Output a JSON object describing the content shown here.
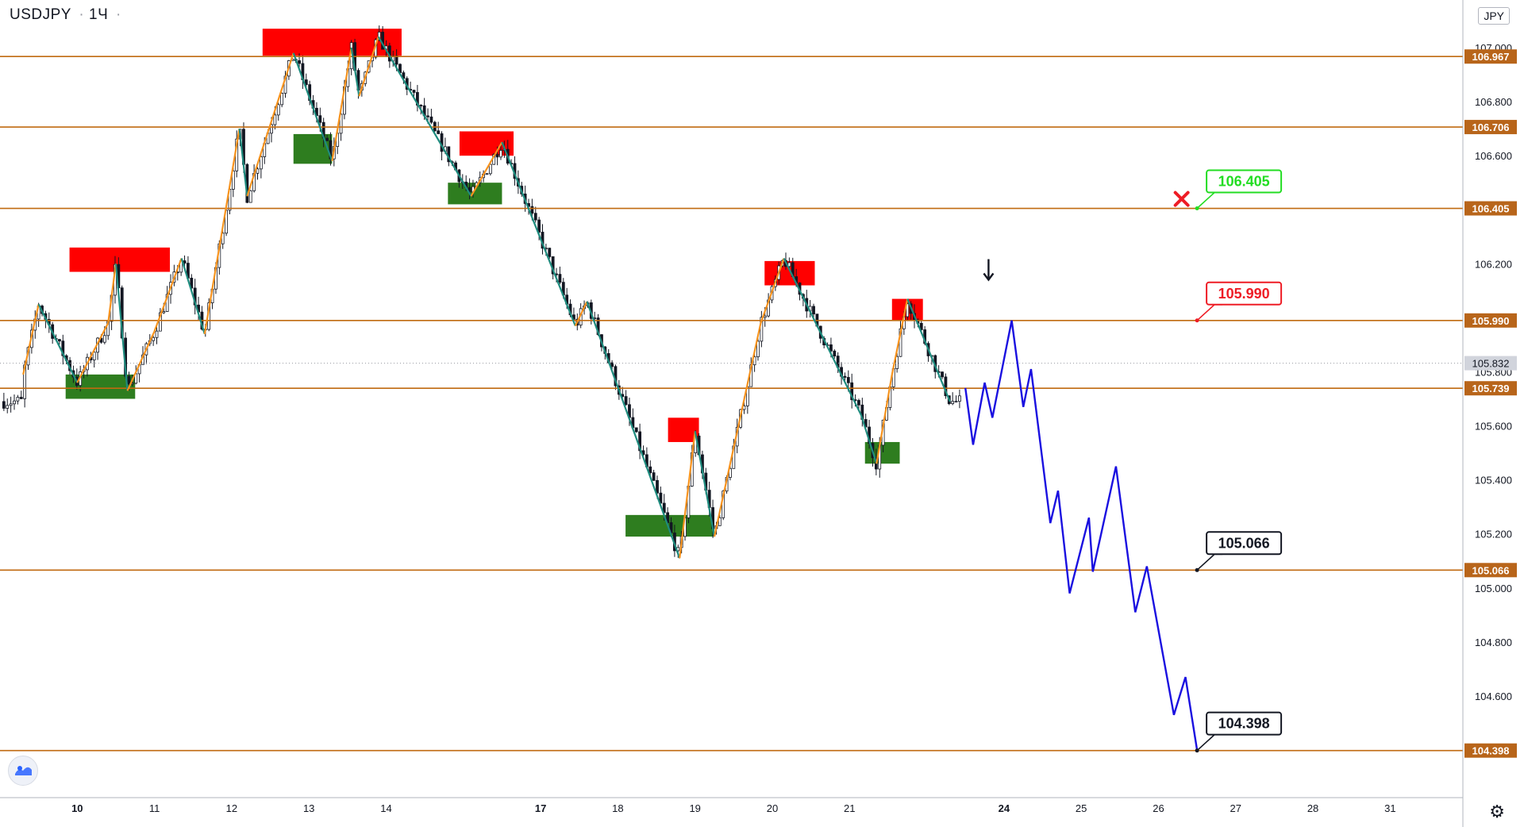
{
  "header": {
    "symbol": "USDJPY",
    "interval": "1Ч",
    "separator": "·",
    "currency": "JPY"
  },
  "colors": {
    "level_line": "#c06a10",
    "label_bg": "#b8651a",
    "supply": "#ff0000",
    "demand": "#2e7d1f",
    "zigzag_up": "#f7931e",
    "zigzag_down": "#1e8b7e",
    "forecast": "#1a10e0",
    "candle": "#131722",
    "target_green": "#22dd22",
    "target_red": "#ee1c25",
    "target_black": "#131722"
  },
  "icons": {
    "logo": "chart-logo-icon",
    "settings": "gear-icon",
    "cross": "x-mark-icon",
    "arrow": "arrow-down-icon"
  },
  "chart_data": {
    "type": "candlestick",
    "title": "USDJPY · 1Ч",
    "ylim": [
      104.25,
      107.05
    ],
    "y_ticks": [
      104.6,
      104.8,
      105.0,
      105.2,
      105.4,
      105.6,
      105.8,
      106.2,
      106.6,
      106.8,
      107.0
    ],
    "y_tick_labels": [
      "104.600",
      "104.800",
      "105.000",
      "105.200",
      "105.400",
      "105.600",
      "105.800",
      "106.200",
      "106.600",
      "106.800",
      "107.000"
    ],
    "x_labels": [
      {
        "t": 0.5,
        "label": "10",
        "bold": true
      },
      {
        "t": 1.5,
        "label": "11",
        "bold": false
      },
      {
        "t": 2.5,
        "label": "12",
        "bold": false
      },
      {
        "t": 3.5,
        "label": "13",
        "bold": false
      },
      {
        "t": 4.5,
        "label": "14",
        "bold": false
      },
      {
        "t": 6.5,
        "label": "17",
        "bold": true
      },
      {
        "t": 7.5,
        "label": "18",
        "bold": false
      },
      {
        "t": 8.5,
        "label": "19",
        "bold": false
      },
      {
        "t": 9.5,
        "label": "20",
        "bold": false
      },
      {
        "t": 10.5,
        "label": "21",
        "bold": false
      },
      {
        "t": 12.5,
        "label": "24",
        "bold": true
      },
      {
        "t": 13.5,
        "label": "25",
        "bold": false
      },
      {
        "t": 14.5,
        "label": "26",
        "bold": false
      },
      {
        "t": 15.5,
        "label": "27",
        "bold": false
      },
      {
        "t": 16.5,
        "label": "28",
        "bold": false
      },
      {
        "t": 17.5,
        "label": "31",
        "bold": false
      }
    ],
    "levels": [
      {
        "price": 106.967,
        "label": "106.967"
      },
      {
        "price": 106.706,
        "label": "106.706"
      },
      {
        "price": 106.405,
        "label": "106.405"
      },
      {
        "price": 105.99,
        "label": "105.990"
      },
      {
        "price": 105.739,
        "label": "105.739"
      },
      {
        "price": 105.066,
        "label": "105.066"
      },
      {
        "price": 104.398,
        "label": "104.398"
      }
    ],
    "last_price": {
      "price": 105.832,
      "label": "105.832"
    },
    "supply_zones": [
      {
        "t0": 0.4,
        "t1": 1.7,
        "p_low": 106.17,
        "p_high": 106.26
      },
      {
        "t0": 2.9,
        "t1": 4.7,
        "p_low": 106.97,
        "p_high": 107.07
      },
      {
        "t0": 5.45,
        "t1": 6.15,
        "p_low": 106.6,
        "p_high": 106.69
      },
      {
        "t0": 8.15,
        "t1": 8.55,
        "p_low": 105.54,
        "p_high": 105.63
      },
      {
        "t0": 9.4,
        "t1": 10.05,
        "p_low": 106.12,
        "p_high": 106.21
      },
      {
        "t0": 11.05,
        "t1": 11.45,
        "p_low": 105.99,
        "p_high": 106.07
      }
    ],
    "demand_zones": [
      {
        "t0": 0.35,
        "t1": 1.25,
        "p_low": 105.7,
        "p_high": 105.79
      },
      {
        "t0": 3.3,
        "t1": 3.8,
        "p_low": 106.57,
        "p_high": 106.68
      },
      {
        "t0": 5.3,
        "t1": 6.0,
        "p_low": 106.42,
        "p_high": 106.5
      },
      {
        "t0": 7.6,
        "t1": 8.75,
        "p_low": 105.19,
        "p_high": 105.27
      },
      {
        "t0": 10.7,
        "t1": 11.15,
        "p_low": 105.46,
        "p_high": 105.54
      }
    ],
    "zigzag": [
      {
        "t": -0.2,
        "p": 105.79
      },
      {
        "t": 0.0,
        "p": 106.05
      },
      {
        "t": 0.5,
        "p": 105.76
      },
      {
        "t": 0.9,
        "p": 105.98
      },
      {
        "t": 1.0,
        "p": 106.2
      },
      {
        "t": 1.15,
        "p": 105.73
      },
      {
        "t": 1.5,
        "p": 105.95
      },
      {
        "t": 1.85,
        "p": 106.22
      },
      {
        "t": 2.15,
        "p": 105.94
      },
      {
        "t": 2.6,
        "p": 106.7
      },
      {
        "t": 2.7,
        "p": 106.45
      },
      {
        "t": 3.3,
        "p": 106.98
      },
      {
        "t": 3.8,
        "p": 106.58
      },
      {
        "t": 4.05,
        "p": 107.0
      },
      {
        "t": 4.15,
        "p": 106.82
      },
      {
        "t": 4.4,
        "p": 107.04
      },
      {
        "t": 5.6,
        "p": 106.45
      },
      {
        "t": 6.0,
        "p": 106.65
      },
      {
        "t": 6.95,
        "p": 105.97
      },
      {
        "t": 7.1,
        "p": 106.06
      },
      {
        "t": 8.3,
        "p": 105.11
      },
      {
        "t": 8.5,
        "p": 105.58
      },
      {
        "t": 8.75,
        "p": 105.19
      },
      {
        "t": 9.35,
        "p": 105.98
      },
      {
        "t": 9.65,
        "p": 106.22
      },
      {
        "t": 10.65,
        "p": 105.64
      },
      {
        "t": 10.85,
        "p": 105.46
      },
      {
        "t": 11.05,
        "p": 105.79
      },
      {
        "t": 11.25,
        "p": 106.07
      },
      {
        "t": 11.8,
        "p": 105.69
      }
    ],
    "forecast": [
      {
        "t": 12.0,
        "p": 105.74
      },
      {
        "t": 12.1,
        "p": 105.53
      },
      {
        "t": 12.25,
        "p": 105.76
      },
      {
        "t": 12.35,
        "p": 105.63
      },
      {
        "t": 12.6,
        "p": 105.99
      },
      {
        "t": 12.75,
        "p": 105.67
      },
      {
        "t": 12.85,
        "p": 105.81
      },
      {
        "t": 13.1,
        "p": 105.24
      },
      {
        "t": 13.2,
        "p": 105.36
      },
      {
        "t": 13.35,
        "p": 104.98
      },
      {
        "t": 13.6,
        "p": 105.26
      },
      {
        "t": 13.65,
        "p": 105.06
      },
      {
        "t": 13.95,
        "p": 105.45
      },
      {
        "t": 14.2,
        "p": 104.91
      },
      {
        "t": 14.35,
        "p": 105.08
      },
      {
        "t": 14.7,
        "p": 104.53
      },
      {
        "t": 14.85,
        "p": 104.67
      },
      {
        "t": 15.0,
        "p": 104.4
      }
    ],
    "targets": [
      {
        "t": 15.0,
        "price": 106.405,
        "label": "106.405",
        "style": "green"
      },
      {
        "t": 15.0,
        "price": 105.99,
        "label": "105.990",
        "style": "red"
      },
      {
        "t": 15.0,
        "price": 105.066,
        "label": "105.066",
        "style": "black"
      },
      {
        "t": 15.0,
        "price": 104.398,
        "label": "104.398",
        "style": "black"
      }
    ],
    "cross_marker": {
      "t": 14.8,
      "price": 106.44
    },
    "arrow_marker": {
      "t": 12.3,
      "price": 106.17
    }
  }
}
